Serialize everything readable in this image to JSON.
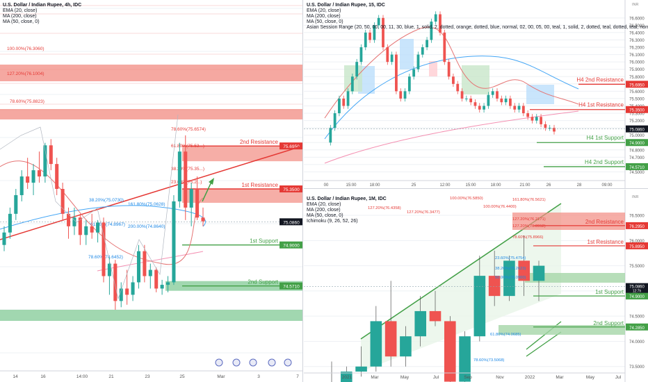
{
  "colors": {
    "bull": "#26a69a",
    "bear": "#ef5350",
    "res": "#e53935",
    "sup": "#43a047",
    "fib": "#8a8f9a",
    "ema": "#e57373",
    "ma200": "#f48fb1",
    "ma50": "#42a5f5",
    "grid": "#eef0f4"
  },
  "chart_data": [
    {
      "type": "candlestick",
      "title": "U.S. Dollar / Indian Rupee, 4h, IDC",
      "indicators": [
        "EMA (20, close)",
        "MA (200, close)",
        "MA (50, close, 0)"
      ],
      "x_ticks": [
        "14",
        "16",
        "14:00",
        "21",
        "23",
        "25",
        "Mar",
        "3",
        "7"
      ],
      "ylim": [
        73.9,
        76.8
      ],
      "levels": [
        {
          "label": "2nd Resistance",
          "price": "75.6950",
          "value": 75.695,
          "kind": "res"
        },
        {
          "label": "1st Resistance",
          "price": "75.3500",
          "value": 75.35,
          "kind": "res"
        },
        {
          "label": "1st Support",
          "price": "74.9000",
          "value": 74.9,
          "kind": "sup"
        },
        {
          "label": "2nd Support",
          "price": "74.5710",
          "value": 74.571,
          "kind": "sup"
        }
      ],
      "last_price": "75.0860",
      "fib_labels": [
        "100.00%(76.3060)",
        "127.20%(76.1004)",
        "78.60%(75.8823)",
        "78.60%(75.6574)",
        "61.80%(75.53...)",
        "38.20%(75.35...)",
        "23.60%(75.2...)",
        "161.80%(75.0628)",
        "200.00%(74.8640)",
        "61.80%(74.8967)",
        "78.60%(74.6452)",
        "38.20%(75.0730)"
      ],
      "candles": [
        [
          74.9,
          75.05,
          74.85,
          75.0
        ],
        [
          75.0,
          75.2,
          74.95,
          75.15
        ],
        [
          75.15,
          75.35,
          75.1,
          75.3
        ],
        [
          75.3,
          75.5,
          75.25,
          75.45
        ],
        [
          75.45,
          75.6,
          75.35,
          75.4
        ],
        [
          75.4,
          75.55,
          75.3,
          75.5
        ],
        [
          75.5,
          75.65,
          75.4,
          75.45
        ],
        [
          75.45,
          75.72,
          75.4,
          75.7
        ],
        [
          75.7,
          75.75,
          75.5,
          75.55
        ],
        [
          75.55,
          75.6,
          75.3,
          75.35
        ],
        [
          75.35,
          75.4,
          75.1,
          75.15
        ],
        [
          75.15,
          75.2,
          74.95,
          75.05
        ],
        [
          75.05,
          75.2,
          74.98,
          75.12
        ],
        [
          75.12,
          75.15,
          74.9,
          74.98
        ],
        [
          74.98,
          75.1,
          74.9,
          75.05
        ],
        [
          75.05,
          75.15,
          74.95,
          75.0
        ],
        [
          75.0,
          75.1,
          74.92,
          75.08
        ],
        [
          75.08,
          75.12,
          74.6,
          74.65
        ],
        [
          74.65,
          74.8,
          74.5,
          74.75
        ],
        [
          74.75,
          74.78,
          74.38,
          74.45
        ],
        [
          74.45,
          74.6,
          74.4,
          74.55
        ],
        [
          74.55,
          74.7,
          74.42,
          74.5
        ],
        [
          74.5,
          74.65,
          74.45,
          74.6
        ],
        [
          74.6,
          74.9,
          74.55,
          74.85
        ],
        [
          74.85,
          74.9,
          74.6,
          74.65
        ],
        [
          74.65,
          74.75,
          74.55,
          74.7
        ],
        [
          74.7,
          74.72,
          74.52,
          74.55
        ],
        [
          74.55,
          74.62,
          74.5,
          74.58
        ],
        [
          74.58,
          74.65,
          74.52,
          74.6
        ],
        [
          74.6,
          75.3,
          74.58,
          75.25
        ],
        [
          75.25,
          75.72,
          75.2,
          75.65
        ],
        [
          75.65,
          75.78,
          75.1,
          75.2
        ],
        [
          75.2,
          75.4,
          75.05,
          75.35
        ],
        [
          75.35,
          75.45,
          75.1,
          75.12
        ],
        [
          75.12,
          75.2,
          75.05,
          75.09
        ]
      ]
    },
    {
      "type": "candlestick",
      "title": "U.S. Dollar / Indian Rupee, 15, IDC",
      "indicators": [
        "EMA (20, close)",
        "MA (200, close)",
        "MA (50, close, 0)",
        "Asian Session Range (20, 50, 00, 00, 11, 30, blue, 1, solid, 2, dotted, orange, dotted, blue, normal, 02, 00, 05, 00, teal, 1, solid, 2, dotted, teal, dotted, teal, normal, 08, 0"
      ],
      "x_ticks": [
        "00",
        "15:00",
        "18:00",
        "25",
        "12:00",
        "15:00",
        "18:00",
        "21:00",
        "26",
        "28",
        "09:00"
      ],
      "ylim": [
        74.4,
        76.75
      ],
      "levels": [
        {
          "label": "H4 2nd Resistance",
          "price": "75.6950",
          "value": 75.695,
          "kind": "res"
        },
        {
          "label": "H4 1st Resistance",
          "price": "75.3500",
          "value": 75.35,
          "kind": "res"
        },
        {
          "label": "H4 1st Support",
          "price": "74.9000",
          "value": 74.9,
          "kind": "sup"
        },
        {
          "label": "H4 2nd Support",
          "price": "74.5710",
          "value": 74.571,
          "kind": "sup"
        }
      ],
      "last_price": "75.0860",
      "y_ticks": [
        "76.6000",
        "76.5000",
        "76.4000",
        "76.3000",
        "76.2000",
        "76.1000",
        "76.0000",
        "75.9000",
        "75.8000",
        "75.7000",
        "75.6000",
        "75.5000",
        "75.4000",
        "75.3000",
        "75.2000",
        "75.1000",
        "75.0000",
        "74.9000",
        "74.8000",
        "74.7000",
        "74.6000",
        "74.5000"
      ],
      "y_tick_values": [
        76.6,
        76.5,
        76.4,
        76.3,
        76.2,
        76.1,
        76.0,
        75.9,
        75.8,
        75.7,
        75.6,
        75.5,
        75.4,
        75.3,
        75.2,
        75.1,
        75.0,
        74.9,
        74.8,
        74.7,
        74.6,
        74.5
      ],
      "currency": "INR"
    },
    {
      "type": "candlestick",
      "title": "U.S. Dollar / Indian Rupee, 1M, IDC",
      "indicators": [
        "EMA (20, close)",
        "MA (200, close)",
        "MA (50, close, 0)",
        "Ichimoku (9, 26, 52, 26)"
      ],
      "x_ticks": [
        "2021",
        "Mar",
        "May",
        "Jul",
        "Sep",
        "Nov",
        "2022",
        "Mar",
        "May",
        "Jul"
      ],
      "ylim": [
        73.4,
        76.9
      ],
      "levels": [
        {
          "label": "2nd Resistance",
          "price": "76.2950",
          "value": 76.295,
          "kind": "res"
        },
        {
          "label": "1st Resistance",
          "price": "75.8950",
          "value": 75.895,
          "kind": "res"
        },
        {
          "label": "1st Support",
          "price": "74.9000",
          "value": 74.9,
          "kind": "sup"
        },
        {
          "label": "2nd Support",
          "price": "74.2850",
          "value": 74.285,
          "kind": "sup"
        }
      ],
      "last_price": "75.0860",
      "last_price_tag": "12:7h",
      "y_ticks": [
        "76.5000",
        "76.0000",
        "75.5000",
        "75.0000",
        "74.5000",
        "74.0000",
        "73.5000"
      ],
      "y_tick_values": [
        76.5,
        76.0,
        75.5,
        75.0,
        74.5,
        74.0,
        73.5
      ],
      "currency": "INR",
      "fib_labels": [
        "127.20%(76.4358)",
        "127.20%(76.3477)",
        "100.00%(76.5850)",
        "100.00%(76.4400)",
        "161.80%(76.5621)",
        "127.20%(76.2171)",
        "127.20%(76.0912)",
        "78.60%(75.8966)",
        "23.60%(75.4754)",
        "38.20%(75.2623)",
        "50.00%(75.0900)",
        "61.80%(74.0685)",
        "78.60%(73.5068)"
      ],
      "candles": [
        [
          73.1,
          73.6,
          72.9,
          73.0
        ],
        [
          73.0,
          73.5,
          72.8,
          73.4
        ],
        [
          73.4,
          73.9,
          73.3,
          73.5
        ],
        [
          73.5,
          74.7,
          73.4,
          74.4
        ],
        [
          74.4,
          75.2,
          73.5,
          73.7
        ],
        [
          73.7,
          74.3,
          73.5,
          74.1
        ],
        [
          74.1,
          74.9,
          73.9,
          74.6
        ],
        [
          74.6,
          75.0,
          74.3,
          74.4
        ],
        [
          74.4,
          74.5,
          72.9,
          73.2
        ],
        [
          73.2,
          74.2,
          72.9,
          74.1
        ],
        [
          74.1,
          75.7,
          74.0,
          75.3
        ],
        [
          75.3,
          75.8,
          74.7,
          74.9
        ],
        [
          74.9,
          75.7,
          74.8,
          75.6
        ],
        [
          75.6,
          76.1,
          74.9,
          75.2
        ],
        [
          75.2,
          75.6,
          74.8,
          75.5
        ]
      ]
    }
  ]
}
